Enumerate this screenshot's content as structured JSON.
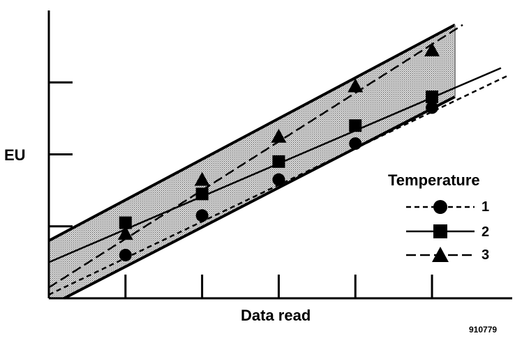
{
  "chart_data": {
    "type": "line",
    "xlabel": "Data read",
    "ylabel": "EU",
    "figure_id": "910779",
    "legend_title": "Temperature",
    "legend_position": "right",
    "grid": false,
    "x": [
      1,
      2,
      3,
      4,
      5
    ],
    "xlim": [
      0,
      5.3
    ],
    "ylim": [
      0,
      4
    ],
    "x_ticks": [
      1,
      2,
      3,
      4,
      5
    ],
    "y_ticks": [
      1,
      2,
      3
    ],
    "tick_labels_shown": false,
    "shaded_band": {
      "upper": [
        [
          0,
          0.8
        ],
        [
          5.3,
          3.8
        ]
      ],
      "lower": [
        [
          0.2,
          0
        ],
        [
          5.3,
          2.8
        ]
      ]
    },
    "series": [
      {
        "name": "1",
        "line_style": "short-dash",
        "marker": "circle",
        "values": [
          0.6,
          1.15,
          1.65,
          2.15,
          2.65
        ],
        "trend": [
          [
            0,
            0.05
          ],
          [
            6.0,
            3.1
          ]
        ]
      },
      {
        "name": "2",
        "line_style": "solid",
        "marker": "square",
        "values": [
          1.05,
          1.45,
          1.9,
          2.4,
          2.8
        ],
        "trend": [
          [
            0,
            0.5
          ],
          [
            5.9,
            3.2
          ]
        ]
      },
      {
        "name": "3",
        "line_style": "long-dash",
        "marker": "triangle",
        "values": [
          0.9,
          1.65,
          2.25,
          2.95,
          3.45
        ],
        "trend": [
          [
            0,
            0.15
          ],
          [
            5.4,
            3.8
          ]
        ]
      }
    ],
    "colors": {
      "ink": "#000000",
      "band": "#c8c8c8"
    }
  }
}
